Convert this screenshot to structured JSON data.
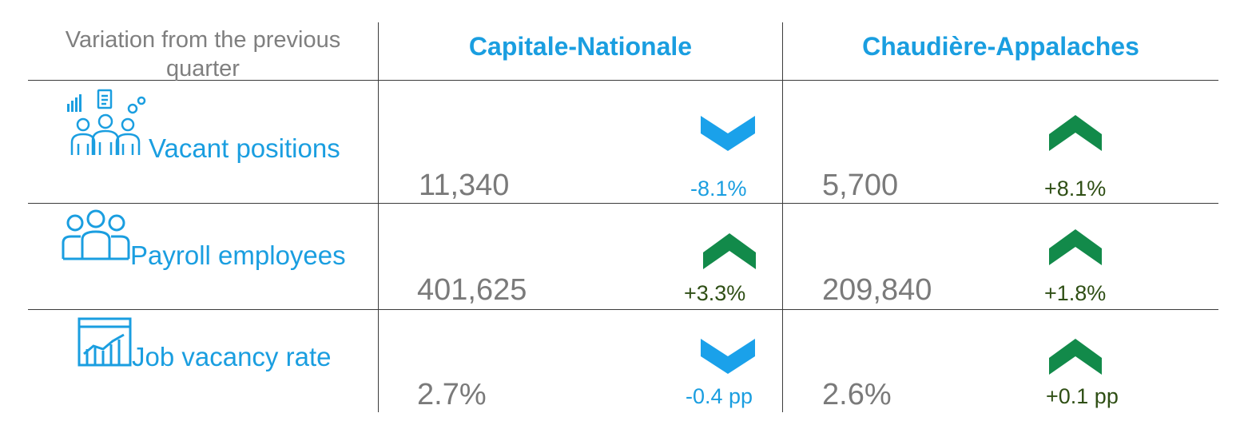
{
  "header": {
    "comparison_label": "Variation from the previous quarter",
    "regions": [
      "Capitale-Nationale",
      "Chaudière-Appalaches"
    ]
  },
  "rows": [
    {
      "label": "Vacant positions",
      "icon": "team-people-icon",
      "cells": [
        {
          "value": "11,340",
          "change": "-8.1%",
          "direction": "down"
        },
        {
          "value": "5,700",
          "change": "+8.1%",
          "direction": "up"
        }
      ]
    },
    {
      "label": "Payroll employees",
      "icon": "employees-group-icon",
      "cells": [
        {
          "value": "401,625",
          "change": "+3.3%",
          "direction": "up"
        },
        {
          "value": "209,840",
          "change": "+1.8%",
          "direction": "up"
        }
      ]
    },
    {
      "label": "Job vacancy rate",
      "icon": "line-chart-icon",
      "cells": [
        {
          "value": "2.7%",
          "change": "-0.4 pp",
          "direction": "down"
        },
        {
          "value": "2.6%",
          "change": "+0.1 pp",
          "direction": "up"
        }
      ]
    }
  ],
  "colors": {
    "accent_blue": "#1a9ee0",
    "up_green": "#128a4a",
    "up_text": "#2f4f15",
    "value_gray": "#7a7a7a"
  }
}
